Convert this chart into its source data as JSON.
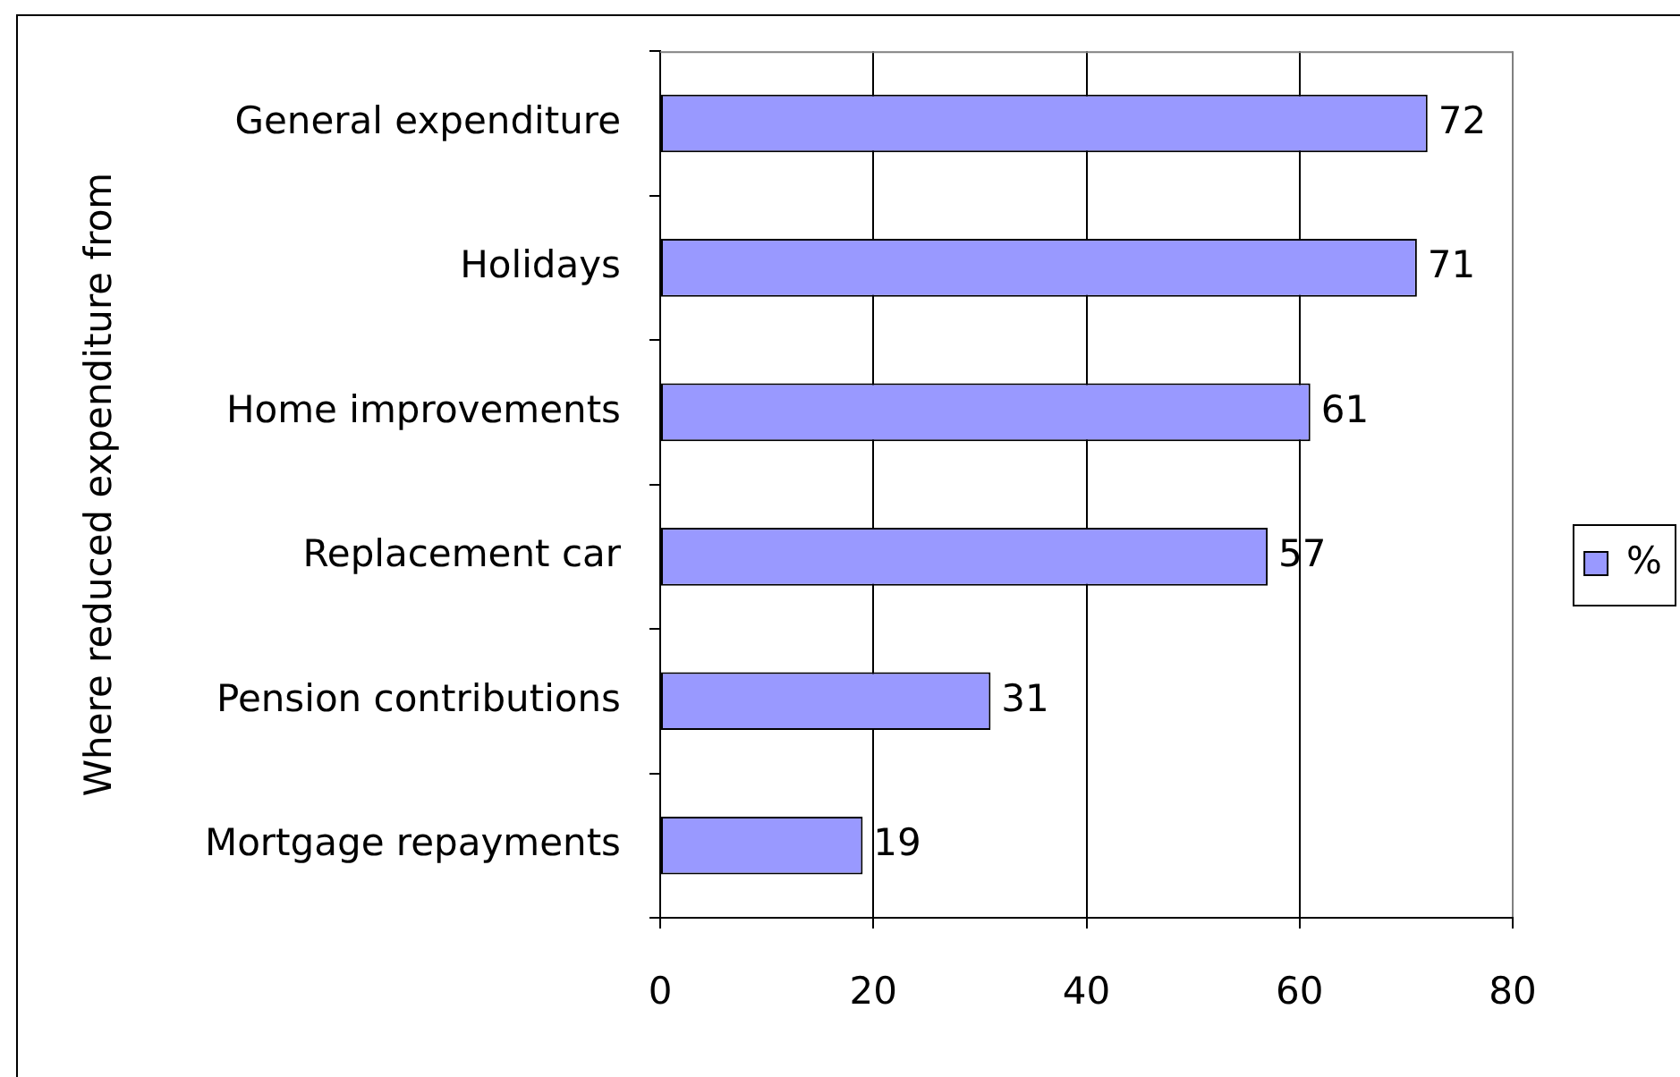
{
  "chart_data": {
    "type": "bar",
    "orientation": "horizontal",
    "ylabel": "Where reduced expenditure from",
    "categories": [
      "General expenditure",
      "Holidays",
      "Home improvements",
      "Replacement car",
      "Pension contributions",
      "Mortgage repayments"
    ],
    "series": [
      {
        "name": "%",
        "color": "#9999ff",
        "values": [
          72,
          71,
          61,
          57,
          31,
          19
        ]
      }
    ],
    "xlim": [
      0,
      80
    ],
    "xticks": [
      0,
      20,
      40,
      60,
      80
    ],
    "grid": "x",
    "legend": "right",
    "data_labels": true
  }
}
